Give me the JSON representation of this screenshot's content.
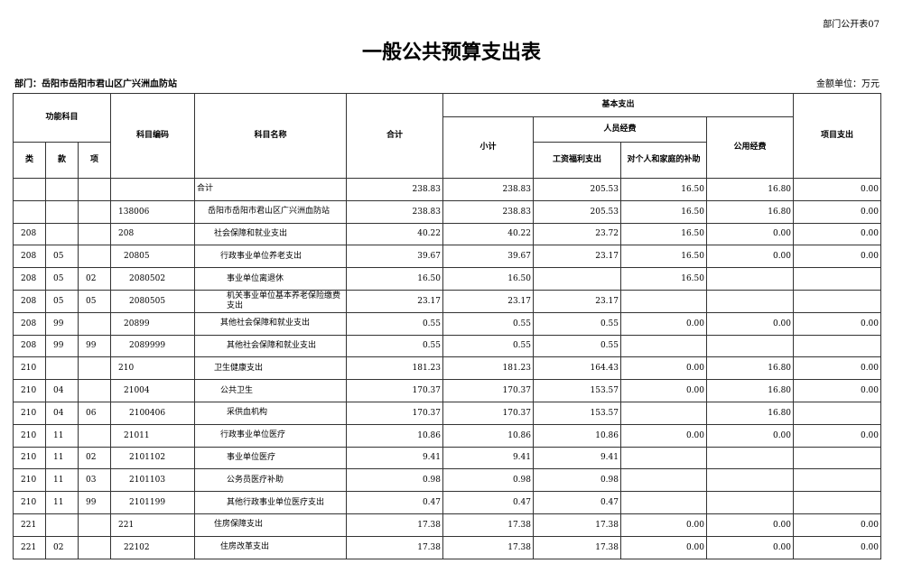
{
  "form_no": "部门公开表07",
  "title": "一般公共预算支出表",
  "department": "部门：岳阳市岳阳市君山区广兴洲血防站",
  "unit": "金额单位：万元",
  "headers": {
    "func": "功能科目",
    "lei": "类",
    "kuan": "款",
    "xiang": "项",
    "code": "科目编码",
    "name": "科目名称",
    "total": "合计",
    "basic": "基本支出",
    "subtotal": "小计",
    "personnel": "人员经费",
    "salary": "工资福利支出",
    "subsidy": "对个人和家庭的补助",
    "public": "公用经费",
    "project": "项目支出"
  },
  "rows": [
    {
      "lei": "",
      "kuan": "",
      "xiang": "",
      "code": "",
      "name": "合计",
      "level": -1,
      "total": "238.83",
      "subtotal": "238.83",
      "salary": "205.53",
      "subsidy": "16.50",
      "public": "16.80",
      "project": "0.00"
    },
    {
      "lei": "",
      "kuan": "",
      "xiang": "",
      "code": "138006",
      "name": "岳阳市岳阳市君山区广兴洲血防站",
      "level": 0,
      "total": "238.83",
      "subtotal": "238.83",
      "salary": "205.53",
      "subsidy": "16.50",
      "public": "16.80",
      "project": "0.00"
    },
    {
      "lei": "208",
      "kuan": "",
      "xiang": "",
      "code": "208",
      "name": "社会保障和就业支出",
      "level": 1,
      "total": "40.22",
      "subtotal": "40.22",
      "salary": "23.72",
      "subsidy": "16.50",
      "public": "0.00",
      "project": "0.00"
    },
    {
      "lei": "208",
      "kuan": "05",
      "xiang": "",
      "code": "20805",
      "name": "行政事业单位养老支出",
      "level": 2,
      "total": "39.67",
      "subtotal": "39.67",
      "salary": "23.17",
      "subsidy": "16.50",
      "public": "0.00",
      "project": "0.00"
    },
    {
      "lei": "208",
      "kuan": "05",
      "xiang": "02",
      "code": "2080502",
      "name": "事业单位离退休",
      "level": 3,
      "total": "16.50",
      "subtotal": "16.50",
      "salary": "",
      "subsidy": "16.50",
      "public": "",
      "project": ""
    },
    {
      "lei": "208",
      "kuan": "05",
      "xiang": "05",
      "code": "2080505",
      "name": "机关事业单位基本养老保险缴费支出",
      "level": 3,
      "total": "23.17",
      "subtotal": "23.17",
      "salary": "23.17",
      "subsidy": "",
      "public": "",
      "project": ""
    },
    {
      "lei": "208",
      "kuan": "99",
      "xiang": "",
      "code": "20899",
      "name": "其他社会保障和就业支出",
      "level": 2,
      "total": "0.55",
      "subtotal": "0.55",
      "salary": "0.55",
      "subsidy": "0.00",
      "public": "0.00",
      "project": "0.00"
    },
    {
      "lei": "208",
      "kuan": "99",
      "xiang": "99",
      "code": "2089999",
      "name": "其他社会保障和就业支出",
      "level": 3,
      "total": "0.55",
      "subtotal": "0.55",
      "salary": "0.55",
      "subsidy": "",
      "public": "",
      "project": ""
    },
    {
      "lei": "210",
      "kuan": "",
      "xiang": "",
      "code": "210",
      "name": "卫生健康支出",
      "level": 1,
      "total": "181.23",
      "subtotal": "181.23",
      "salary": "164.43",
      "subsidy": "0.00",
      "public": "16.80",
      "project": "0.00"
    },
    {
      "lei": "210",
      "kuan": "04",
      "xiang": "",
      "code": "21004",
      "name": "公共卫生",
      "level": 2,
      "total": "170.37",
      "subtotal": "170.37",
      "salary": "153.57",
      "subsidy": "0.00",
      "public": "16.80",
      "project": "0.00"
    },
    {
      "lei": "210",
      "kuan": "04",
      "xiang": "06",
      "code": "2100406",
      "name": "采供血机构",
      "level": 3,
      "total": "170.37",
      "subtotal": "170.37",
      "salary": "153.57",
      "subsidy": "",
      "public": "16.80",
      "project": ""
    },
    {
      "lei": "210",
      "kuan": "11",
      "xiang": "",
      "code": "21011",
      "name": "行政事业单位医疗",
      "level": 2,
      "total": "10.86",
      "subtotal": "10.86",
      "salary": "10.86",
      "subsidy": "0.00",
      "public": "0.00",
      "project": "0.00"
    },
    {
      "lei": "210",
      "kuan": "11",
      "xiang": "02",
      "code": "2101102",
      "name": "事业单位医疗",
      "level": 3,
      "total": "9.41",
      "subtotal": "9.41",
      "salary": "9.41",
      "subsidy": "",
      "public": "",
      "project": ""
    },
    {
      "lei": "210",
      "kuan": "11",
      "xiang": "03",
      "code": "2101103",
      "name": "公务员医疗补助",
      "level": 3,
      "total": "0.98",
      "subtotal": "0.98",
      "salary": "0.98",
      "subsidy": "",
      "public": "",
      "project": ""
    },
    {
      "lei": "210",
      "kuan": "11",
      "xiang": "99",
      "code": "2101199",
      "name": "其他行政事业单位医疗支出",
      "level": 3,
      "total": "0.47",
      "subtotal": "0.47",
      "salary": "0.47",
      "subsidy": "",
      "public": "",
      "project": ""
    },
    {
      "lei": "221",
      "kuan": "",
      "xiang": "",
      "code": "221",
      "name": "住房保障支出",
      "level": 1,
      "total": "17.38",
      "subtotal": "17.38",
      "salary": "17.38",
      "subsidy": "0.00",
      "public": "0.00",
      "project": "0.00"
    },
    {
      "lei": "221",
      "kuan": "02",
      "xiang": "",
      "code": "22102",
      "name": "住房改革支出",
      "level": 2,
      "total": "17.38",
      "subtotal": "17.38",
      "salary": "17.38",
      "subsidy": "0.00",
      "public": "0.00",
      "project": "0.00"
    }
  ]
}
